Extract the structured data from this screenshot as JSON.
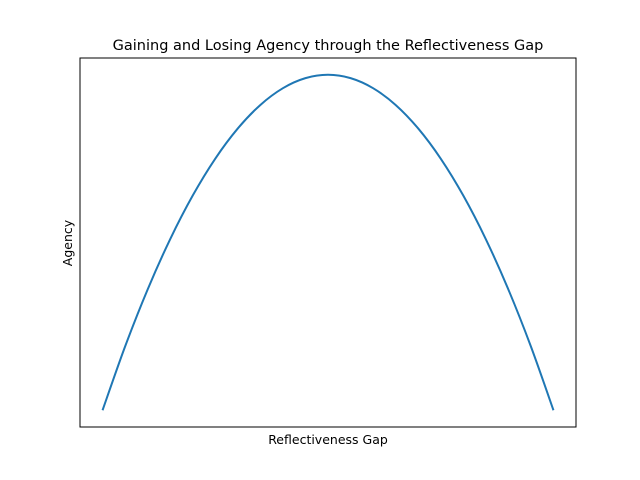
{
  "chart_data": {
    "type": "line",
    "title": "Gaining and Losing Agency through the Reflectiveness Gap",
    "xlabel": "Reflectiveness Gap",
    "ylabel": "Agency",
    "xticks": "none",
    "yticks": "none",
    "grid": false,
    "legend": "none",
    "xlim": [
      -0.1,
      2.1
    ],
    "ylim": [
      -0.05,
      1.05
    ],
    "series": [
      {
        "color": "#1f77b4",
        "x": [
          0,
          0.1,
          0.2,
          0.3,
          0.4,
          0.5,
          0.6,
          0.7,
          0.8,
          0.9,
          1.0,
          1.1,
          1.2,
          1.3,
          1.4,
          1.5,
          1.6,
          1.7,
          1.8,
          1.9,
          2.0
        ],
        "y": [
          0,
          0.19,
          0.36,
          0.51,
          0.64,
          0.75,
          0.84,
          0.91,
          0.96,
          0.99,
          1.0,
          0.99,
          0.96,
          0.91,
          0.84,
          0.75,
          0.64,
          0.51,
          0.36,
          0.19,
          0
        ]
      }
    ]
  }
}
